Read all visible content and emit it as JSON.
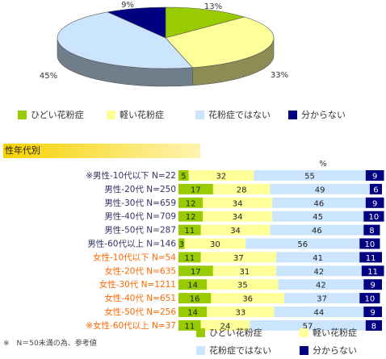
{
  "colors": {
    "hidoi": "#99cc00",
    "karui": "#ffff99",
    "nai": "#cce5ff",
    "wakaranai": "#000080"
  },
  "top_chart": {
    "categories": [
      "ひどい花粉症",
      "軽い花粉症",
      "花粉症ではない",
      "分からない"
    ],
    "labels": [
      "13%",
      "33%",
      "45%",
      "9%"
    ]
  },
  "section_title": "性年代別",
  "percent_unit": "%",
  "bottom_legend": [
    "ひどい花粉症",
    "軽い花粉症",
    "花粉症ではない",
    "分からない"
  ],
  "footnote": "※　N＝50未満の為、参考値",
  "chart_data": [
    {
      "type": "pie",
      "categories": [
        "ひどい花粉症",
        "軽い花粉症",
        "花粉症ではない",
        "分からない"
      ],
      "values": [
        13,
        33,
        45,
        9
      ]
    },
    {
      "type": "bar",
      "orientation": "horizontal",
      "stacked": true,
      "categories": [
        "※男性-10代以下 N=22",
        "男性-20代 N=250",
        "男性-30代 N=659",
        "男性-40代 N=709",
        "男性-50代 N=287",
        "男性-60代以上 N=146",
        "女性-10代以下 N=54",
        "女性-20代 N=635",
        "女性-30代 N=1211",
        "女性-40代 N=651",
        "女性-50代 N=256",
        "※女性-60代以上 N=37"
      ],
      "category_groups": [
        "male",
        "male",
        "male",
        "male",
        "male",
        "male",
        "female",
        "female",
        "female",
        "female",
        "female",
        "female"
      ],
      "series": [
        {
          "name": "ひどい花粉症",
          "values": [
            5,
            17,
            12,
            12,
            11,
            3,
            11,
            17,
            14,
            16,
            14,
            11
          ]
        },
        {
          "name": "軽い花粉症",
          "values": [
            32,
            28,
            34,
            34,
            34,
            30,
            37,
            31,
            35,
            36,
            33,
            24
          ]
        },
        {
          "name": "花粉症ではない",
          "values": [
            55,
            49,
            46,
            45,
            46,
            56,
            41,
            42,
            42,
            37,
            44,
            57
          ]
        },
        {
          "name": "分からない",
          "values": [
            9,
            6,
            9,
            10,
            8,
            10,
            11,
            11,
            9,
            10,
            9,
            8
          ]
        }
      ],
      "xlim": [
        0,
        100
      ]
    }
  ]
}
